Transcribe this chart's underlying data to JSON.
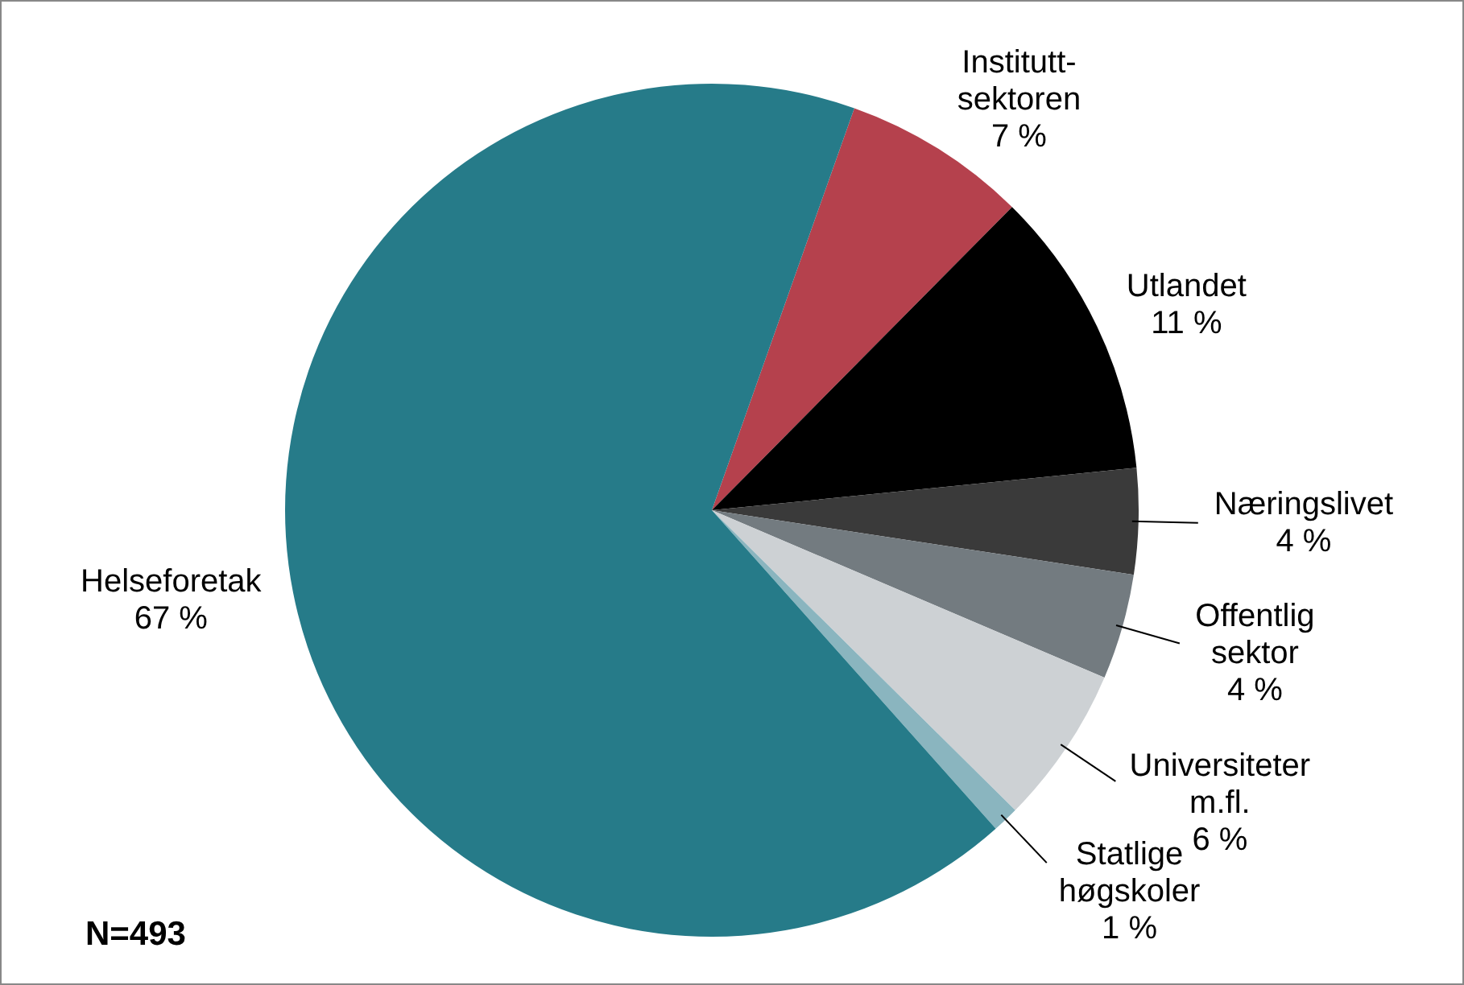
{
  "chart_data": {
    "type": "pie",
    "categories": [
      "Institutt-\nsektoren",
      "Utlandet",
      "Næringslivet",
      "Offentlig\nsektor",
      "Universiteter\nm.fl.",
      "Statlige\nhøgskoler",
      "Helseforetak"
    ],
    "values": [
      7,
      11,
      4,
      4,
      6,
      1,
      67
    ],
    "value_labels": [
      "7 %",
      "11 %",
      "4 %",
      "4 %",
      "6 %",
      "1 %",
      "67 %"
    ],
    "colors": [
      "#b5414d",
      "#000000",
      "#3a3a3a",
      "#737b80",
      "#cdd1d4",
      "#8ab5bf",
      "#267b89"
    ],
    "annotations": [
      "N=493"
    ],
    "legend": false
  }
}
